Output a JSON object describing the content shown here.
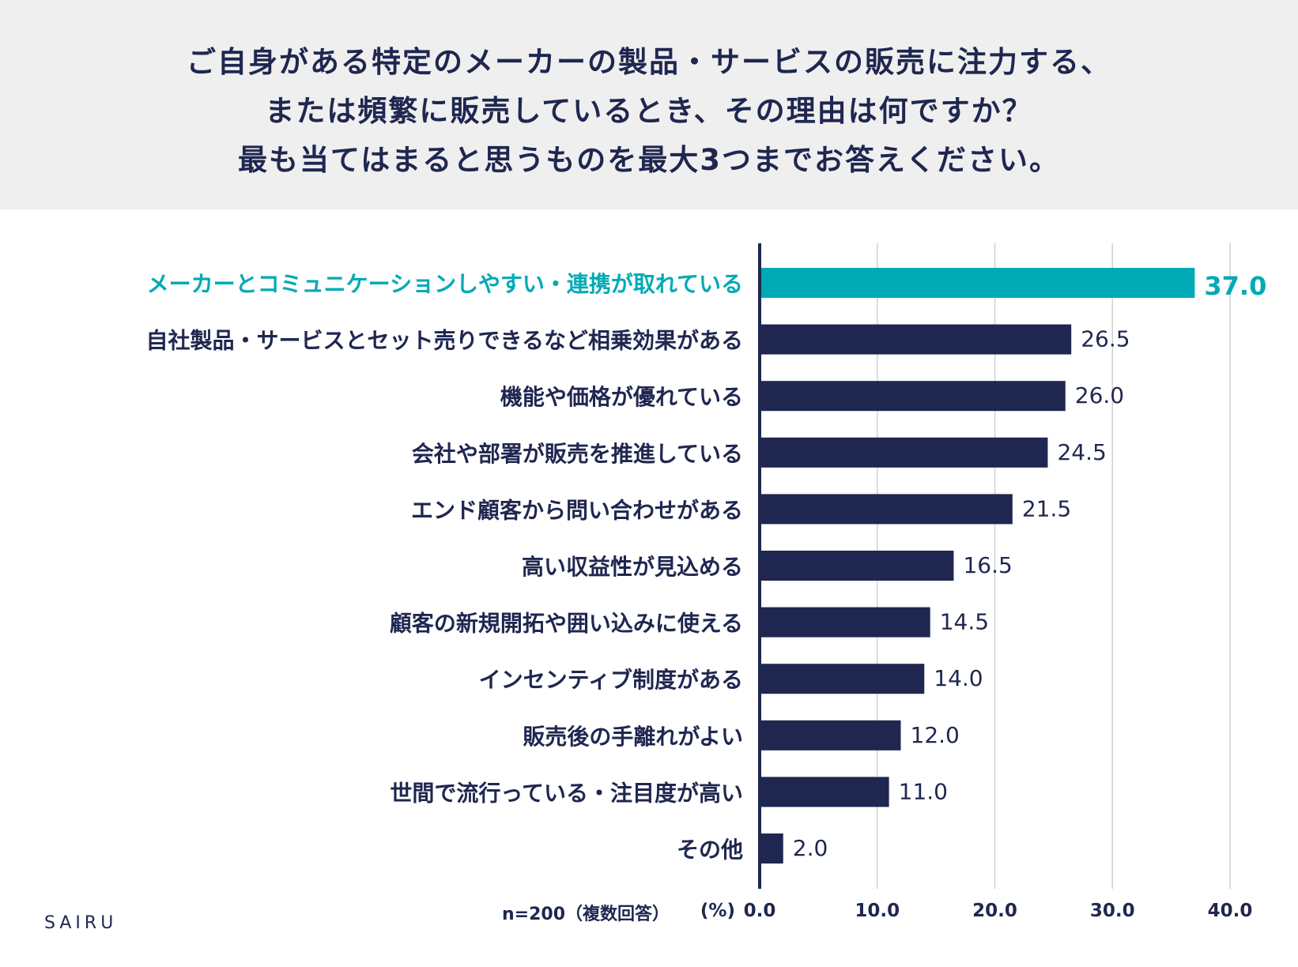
{
  "header": {
    "lines": [
      "ご自身がある特定のメーカーの製品・サービスの販売に注力する、",
      "または頻繁に販売しているとき、その理由は何ですか？",
      "最も当てはまると思うものを最大3つまでお答えください。"
    ]
  },
  "chart_data": {
    "type": "bar",
    "orientation": "horizontal",
    "title": "ご自身がある特定のメーカーの製品・サービスの販売に注力する、または頻繁に販売しているとき、その理由は何ですか？最も当てはまると思うものを最大3つまでお答えください。",
    "categories": [
      "メーカーとコミュニケーションしやすい・連携が取れている",
      "自社製品・サービスとセット売りできるなど相乗効果がある",
      "機能や価格が優れている",
      "会社や部署が販売を推進している",
      "エンド顧客から問い合わせがある",
      "高い収益性が見込める",
      "顧客の新規開拓や囲い込みに使える",
      "インセンティブ制度がある",
      "販売後の手離れがよい",
      "世間で流行っている・注目度が高い",
      "その他"
    ],
    "values": [
      37.0,
      26.5,
      26.0,
      24.5,
      21.5,
      16.5,
      14.5,
      14.0,
      12.0,
      11.0,
      2.0
    ],
    "value_labels": [
      "37.0",
      "26.5",
      "26.0",
      "24.5",
      "21.5",
      "16.5",
      "14.5",
      "14.0",
      "12.0",
      "11.0",
      "2.0"
    ],
    "highlight_index": 0,
    "xlim": [
      0,
      40
    ],
    "xticks": [
      0,
      10,
      20,
      30,
      40
    ],
    "xtick_labels": [
      "0.0",
      "10.0",
      "20.0",
      "30.0",
      "40.0"
    ],
    "xlabel": "(%)",
    "ylabel": "",
    "grid": true,
    "colors": {
      "highlight": "#00aab5",
      "bar": "#1f2750",
      "grid": "#d0d0d0",
      "axis": "#1f2750",
      "text": "#1f2750"
    }
  },
  "footer": {
    "sample_note": "n=200（複数回答）",
    "brand": "SAIRU"
  }
}
